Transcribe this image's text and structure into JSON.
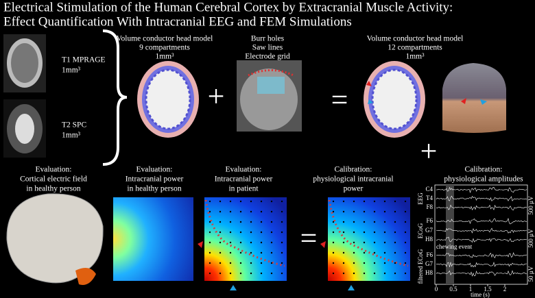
{
  "title": [
    "Electrical Stimulation of the Human Cerebral Cortex by Extracranial Muscle Activity:",
    "Effect Quantification With Intracranial EEG and FEM Simulations"
  ],
  "inputs": [
    {
      "label": "T1 MPRAGE",
      "resolution": "1mm³"
    },
    {
      "label": "T2 SPC",
      "resolution": "1mm³"
    }
  ],
  "models": [
    {
      "lines": [
        "Volume conductor head model",
        "9 compartments",
        "1mm³"
      ]
    },
    {
      "lines": [
        "Burr holes",
        "Saw lines",
        "Electrode grid"
      ]
    },
    {
      "lines": [
        "Volume conductor head model",
        "12 compartments",
        "1mm³"
      ]
    }
  ],
  "panels": [
    {
      "lines": [
        "Evaluation:",
        "Cortical electric field",
        "in healthy person"
      ]
    },
    {
      "lines": [
        "Evaluation:",
        "Intracranial power",
        "in healthy person"
      ]
    },
    {
      "lines": [
        "Evaluation:",
        "Intracranial power",
        "in patient"
      ]
    },
    {
      "lines": [
        "Calibration:",
        "physiological intracranial",
        "power"
      ]
    },
    {
      "lines": [
        "Calibration:",
        "physiological amplitudes"
      ]
    }
  ],
  "traces": {
    "channels": [
      "C4",
      "T4",
      "F8",
      "F6",
      "G7",
      "H8",
      "F6",
      "G7",
      "H8"
    ],
    "groups": [
      "EEG",
      "ECoG",
      "filtered ECoG"
    ],
    "scales": [
      "500 µV",
      "500 µV",
      "50 µV"
    ],
    "event": "chewing event",
    "xticks": [
      "0",
      "0.5",
      "1",
      "1.5",
      "2"
    ],
    "xlabel": "time (s)"
  }
}
